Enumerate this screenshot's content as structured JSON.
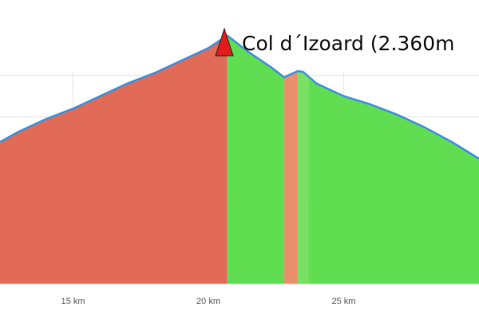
{
  "chart_data": {
    "type": "area",
    "title": "Col d´Izoard (2.360m",
    "title_marker_icon": "red-triangle-icon",
    "x_unit": "km",
    "xlim": [
      12.3,
      30.0
    ],
    "ylim": [
      0,
      6
    ],
    "grid": true,
    "x_ticks": [
      {
        "value": 15,
        "label": "15 km"
      },
      {
        "value": 20,
        "label": "20 km"
      },
      {
        "value": 25,
        "label": "25 km"
      }
    ],
    "y_gridlines": [
      1,
      2,
      3,
      4,
      5
    ],
    "profile": [
      [
        12.3,
        3.4
      ],
      [
        13.0,
        3.65
      ],
      [
        14.0,
        3.95
      ],
      [
        15.0,
        4.2
      ],
      [
        16.0,
        4.5
      ],
      [
        17.0,
        4.8
      ],
      [
        18.0,
        5.05
      ],
      [
        19.0,
        5.35
      ],
      [
        20.0,
        5.65
      ],
      [
        20.7,
        5.95
      ],
      [
        21.5,
        5.55
      ],
      [
        22.3,
        5.2
      ],
      [
        22.8,
        4.95
      ],
      [
        23.3,
        5.1
      ],
      [
        23.5,
        5.08
      ],
      [
        24.0,
        4.8
      ],
      [
        25.0,
        4.5
      ],
      [
        26.0,
        4.3
      ],
      [
        27.0,
        4.05
      ],
      [
        28.0,
        3.75
      ],
      [
        29.0,
        3.4
      ],
      [
        30.0,
        3.0
      ]
    ],
    "segments": [
      {
        "from": 12.3,
        "to": 20.7,
        "color": "#e16b56"
      },
      {
        "from": 20.7,
        "to": 22.8,
        "color": "#60dd50"
      },
      {
        "from": 22.8,
        "to": 23.3,
        "color": "#e98e6a"
      },
      {
        "from": 23.3,
        "to": 23.7,
        "color": "#78e062"
      },
      {
        "from": 23.7,
        "to": 30.0,
        "color": "#60dd50"
      }
    ],
    "line_color": "#3d8fe0",
    "grid_color": "#e5e5e5"
  }
}
